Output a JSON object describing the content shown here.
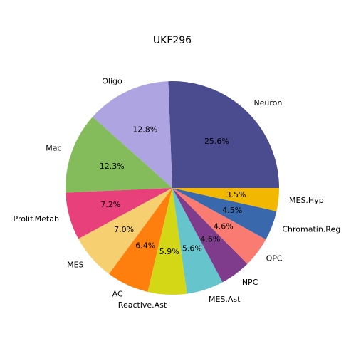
{
  "chart_data": {
    "type": "pie",
    "title": "UKF296",
    "categories": [
      "Neuron",
      "Oligo",
      "Mac",
      "Prolif.Metab",
      "MES",
      "AC",
      "Reactive.Ast",
      "MES.Ast",
      "NPC",
      "OPC",
      "Chromatin.Reg",
      "MES.Hyp"
    ],
    "values": [
      25.6,
      12.8,
      12.3,
      7.2,
      7.0,
      6.4,
      5.9,
      5.6,
      4.6,
      4.6,
      4.5,
      3.5
    ],
    "value_labels": [
      "25.6%",
      "12.8%",
      "12.3%",
      "7.2%",
      "7.0%",
      "6.4%",
      "5.9%",
      "5.6%",
      "4.6%",
      "4.6%",
      "4.5%",
      "3.5%"
    ],
    "colors": [
      "#4b4b8f",
      "#aea4e2",
      "#84bc5b",
      "#e8407a",
      "#f6cf71",
      "#ff7f0e",
      "#d4d716",
      "#66c5cc",
      "#7f3c8d",
      "#f97b72",
      "#3969ac",
      "#f2b701"
    ]
  }
}
